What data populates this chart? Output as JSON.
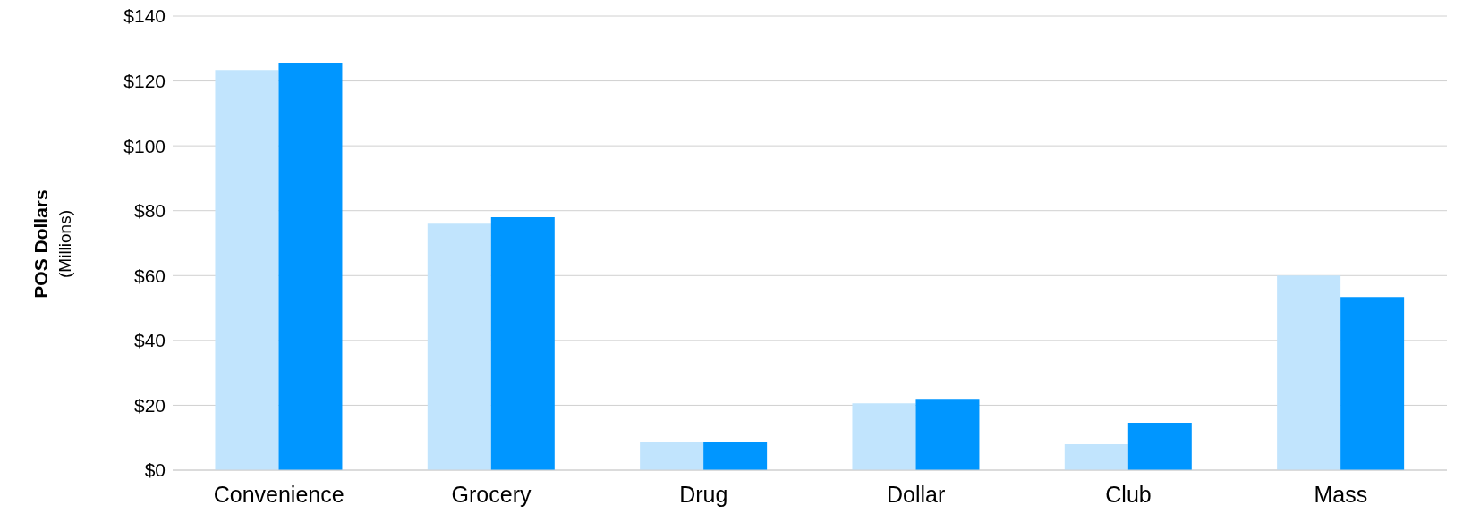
{
  "chart_data": {
    "type": "bar",
    "ylabel": "POS Dollars\n(Millions)",
    "categories": [
      "Convenience",
      "Grocery",
      "Drug",
      "Dollar",
      "Club",
      "Mass"
    ],
    "series": [
      {
        "color": "#c1e4fd",
        "values": [
          123.4,
          76,
          8.6,
          20.6,
          8,
          60
        ]
      },
      {
        "color": "#0096ff",
        "values": [
          125.7,
          78,
          8.6,
          22,
          14.6,
          53.4
        ]
      }
    ],
    "ylim": [
      0,
      140
    ],
    "yticks": [
      {
        "value": 0,
        "label": "$0"
      },
      {
        "value": 20,
        "label": "$20"
      },
      {
        "value": 40,
        "label": "$40"
      },
      {
        "value": 60,
        "label": "$60"
      },
      {
        "value": 80,
        "label": "$80"
      },
      {
        "value": 100,
        "label": "$100"
      },
      {
        "value": 120,
        "label": "$120"
      },
      {
        "value": 140,
        "label": "$140"
      }
    ],
    "grid": "y",
    "legend": false
  }
}
